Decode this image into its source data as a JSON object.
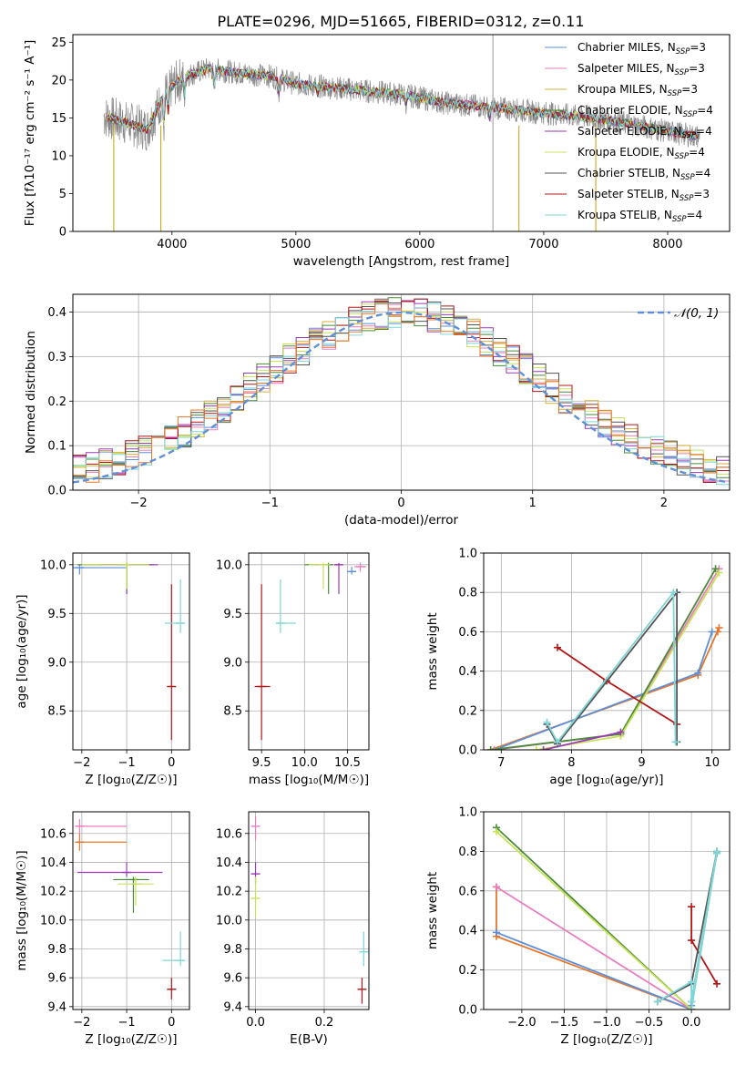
{
  "figure": {
    "title": "PLATE=0296, MJD=51665, FIBERID=0312, z=0.11"
  },
  "colors": {
    "chabrier_miles": "#5b8fd9",
    "salpeter_miles": "#e87ec0",
    "kroupa_miles": "#d2b03a",
    "chabrier_elodie": "#4a8a3a",
    "salpeter_elodie": "#9a3ab5",
    "kroupa_elodie": "#c8e25a",
    "chabrier_stelib": "#555555",
    "salpeter_stelib": "#b01818",
    "kroupa_stelib": "#7fd6d6",
    "orange": "#e8762b",
    "gaussian": "#6090d8",
    "grid": "#b0b0b0",
    "data": "#888888"
  },
  "chart_data": [
    {
      "id": "spectrum",
      "type": "line",
      "xlabel": "wavelength [Angstrom, rest frame]",
      "ylabel": "Flux [fλ10⁻¹⁷ erg cm⁻² s⁻¹ A⁻¹]",
      "xlim": [
        3200,
        8500
      ],
      "ylim": [
        0,
        26
      ],
      "xticks": [
        4000,
        5000,
        6000,
        7000,
        8000
      ],
      "yticks": [
        0,
        5,
        10,
        15,
        20,
        25
      ],
      "grid": false,
      "legend_position": "top-right",
      "continuum": {
        "x": [
          3450,
          3600,
          3800,
          3950,
          4100,
          4300,
          4500,
          4800,
          5000,
          5300,
          5600,
          5900,
          6200,
          6500,
          6800,
          7100,
          7400,
          7700,
          8000,
          8250
        ],
        "y": [
          15.2,
          14.5,
          13.5,
          18.5,
          20.5,
          21.5,
          21.0,
          20.5,
          19.5,
          19.0,
          18.5,
          18.0,
          17.0,
          16.5,
          16.0,
          15.5,
          15.0,
          14.2,
          13.2,
          12.5
        ]
      },
      "series": [
        {
          "name": "Chabrier MILES, N_SSP=3",
          "color_key": "chabrier_miles"
        },
        {
          "name": "Salpeter MILES, N_SSP=3",
          "color_key": "salpeter_miles"
        },
        {
          "name": "Kroupa MILES, N_SSP=3",
          "color_key": "kroupa_miles"
        },
        {
          "name": "Chabrier ELODIE, N_SSP=4",
          "color_key": "chabrier_elodie"
        },
        {
          "name": "Salpeter ELODIE, N_SSP=4",
          "color_key": "salpeter_elodie"
        },
        {
          "name": "Kroupa ELODIE, N_SSP=4",
          "color_key": "kroupa_elodie"
        },
        {
          "name": "Chabrier STELIB, N_SSP=4",
          "color_key": "chabrier_stelib"
        },
        {
          "name": "Salpeter STELIB, N_SSP=3",
          "color_key": "salpeter_stelib"
        },
        {
          "name": "Kroupa STELIB, N_SSP=4",
          "color_key": "kroupa_stelib"
        }
      ]
    },
    {
      "id": "residuals",
      "type": "line",
      "xlabel": "(data-model)/error",
      "ylabel": "Normed distribution",
      "xlim": [
        -2.5,
        2.5
      ],
      "ylim": [
        0,
        0.44
      ],
      "xticks": [
        -2,
        -1,
        0,
        1,
        2
      ],
      "yticks": [
        0.0,
        0.1,
        0.2,
        0.3,
        0.4
      ],
      "grid": true,
      "legend_position": "top-right",
      "legend": "𝒩(0, 1)",
      "histogram_bins": {
        "start": -2.5,
        "width": 0.1,
        "count": 50
      },
      "gaussian": {
        "mean": 0,
        "sigma": 1
      }
    },
    {
      "id": "age_vs_Z",
      "type": "scatter",
      "xlabel": "Z [log₁₀(Z/Z☉)]",
      "ylabel": "age  [log₁₀(age/yr)]",
      "xlim": [
        -2.2,
        0.4
      ],
      "ylim": [
        8.1,
        10.12
      ],
      "xticks": [
        -2,
        -1,
        0
      ],
      "yticks": [
        8.5,
        9.0,
        9.5,
        10.0
      ],
      "grid": true,
      "points": [
        {
          "x": -2.05,
          "xlo": -2.2,
          "xhi": -1.0,
          "y": 9.97,
          "ylo": 9.9,
          "yhi": 10.0,
          "color_key": "chabrier_miles"
        },
        {
          "x": -1.0,
          "xlo": -2.1,
          "xhi": -0.4,
          "y": 10.0,
          "ylo": 9.7,
          "yhi": 10.02,
          "color_key": "chabrier_elodie"
        },
        {
          "x": -1.0,
          "xlo": -1.6,
          "xhi": -0.3,
          "y": 10.0,
          "ylo": 9.7,
          "yhi": 10.02,
          "color_key": "salpeter_elodie"
        },
        {
          "x": -1.0,
          "xlo": -2.0,
          "xhi": -0.5,
          "y": 10.0,
          "ylo": 9.75,
          "yhi": 10.02,
          "color_key": "kroupa_elodie"
        },
        {
          "x": 0.0,
          "xlo": -0.05,
          "xhi": 0.05,
          "y": 8.75,
          "ylo": 8.2,
          "yhi": 9.8,
          "color_key": "salpeter_stelib"
        },
        {
          "x": 0.2,
          "xlo": -0.15,
          "xhi": 0.3,
          "y": 9.4,
          "ylo": 9.3,
          "yhi": 9.85,
          "color_key": "kroupa_stelib"
        }
      ]
    },
    {
      "id": "age_vs_mass",
      "type": "scatter",
      "xlabel": "mass [log₁₀(M/M☉)]",
      "ylabel": "",
      "xlim": [
        9.35,
        10.75
      ],
      "ylim": [
        8.1,
        10.12
      ],
      "xticks": [
        9.5,
        10.0,
        10.5
      ],
      "yticks": [
        8.5,
        9.0,
        9.5,
        10.0
      ],
      "grid": true,
      "points": [
        {
          "x": 10.55,
          "xlo": 10.5,
          "xhi": 10.6,
          "y": 9.93,
          "ylo": 9.9,
          "yhi": 9.98,
          "color_key": "chabrier_miles"
        },
        {
          "x": 10.65,
          "xlo": 10.58,
          "xhi": 10.72,
          "y": 9.98,
          "ylo": 9.93,
          "yhi": 10.02,
          "color_key": "salpeter_miles"
        },
        {
          "x": 10.28,
          "xlo": 10.0,
          "xhi": 10.3,
          "y": 10.0,
          "ylo": 9.7,
          "yhi": 10.02,
          "color_key": "chabrier_elodie"
        },
        {
          "x": 10.4,
          "xlo": 10.35,
          "xhi": 10.42,
          "y": 10.0,
          "ylo": 9.7,
          "yhi": 10.02,
          "color_key": "salpeter_elodie"
        },
        {
          "x": 10.22,
          "xlo": 10.05,
          "xhi": 10.3,
          "y": 10.0,
          "ylo": 9.75,
          "yhi": 10.02,
          "color_key": "kroupa_elodie"
        },
        {
          "x": 9.5,
          "xlo": 9.42,
          "xhi": 9.6,
          "y": 8.75,
          "ylo": 8.2,
          "yhi": 9.8,
          "color_key": "salpeter_stelib"
        },
        {
          "x": 9.72,
          "xlo": 9.68,
          "xhi": 9.9,
          "y": 9.4,
          "ylo": 9.3,
          "yhi": 9.85,
          "color_key": "kroupa_stelib"
        }
      ]
    },
    {
      "id": "weight_vs_age",
      "type": "line",
      "xlabel": "age  [log₁₀(age/yr)]",
      "ylabel": "mass weight",
      "xlim": [
        6.75,
        10.25
      ],
      "ylim": [
        0,
        1
      ],
      "xticks": [
        7,
        8,
        9,
        10
      ],
      "yticks": [
        0.0,
        0.2,
        0.4,
        0.6,
        0.8,
        1.0
      ],
      "grid": true,
      "lines": [
        {
          "color_key": "orange",
          "x": [
            6.85,
            9.8,
            10.1,
            10.08
          ],
          "y": [
            0.0,
            0.38,
            0.62,
            0.6
          ]
        },
        {
          "color_key": "chabrier_miles",
          "x": [
            6.9,
            9.8,
            10.0
          ],
          "y": [
            0.0,
            0.39,
            0.6
          ]
        },
        {
          "color_key": "salpeter_miles",
          "x": [
            6.9,
            8.7,
            10.1
          ],
          "y": [
            0.0,
            0.08,
            0.92
          ]
        },
        {
          "color_key": "chabrier_elodie",
          "x": [
            6.85,
            8.7,
            10.05
          ],
          "y": [
            0.0,
            0.08,
            0.92
          ]
        },
        {
          "color_key": "kroupa_elodie",
          "x": [
            7.5,
            8.7,
            10.1
          ],
          "y": [
            0.0,
            0.07,
            0.9
          ]
        },
        {
          "color_key": "salpeter_elodie",
          "x": [
            7.6,
            8.7
          ],
          "y": [
            0.0,
            0.09
          ]
        },
        {
          "color_key": "salpeter_stelib",
          "x": [
            7.8,
            8.5,
            9.5
          ],
          "y": [
            0.52,
            0.35,
            0.13
          ]
        },
        {
          "color_key": "chabrier_stelib",
          "x": [
            7.65,
            7.8,
            9.5,
            9.5
          ],
          "y": [
            0.13,
            0.03,
            0.8,
            0.04
          ]
        },
        {
          "color_key": "kroupa_stelib",
          "x": [
            7.65,
            7.8,
            9.45,
            9.48
          ],
          "y": [
            0.14,
            0.04,
            0.8,
            0.04
          ]
        }
      ]
    },
    {
      "id": "mass_vs_Z",
      "type": "scatter",
      "xlabel": "Z [log₁₀(Z/Z☉)]",
      "ylabel": "mass [log₁₀(M/M☉)]",
      "xlim": [
        -2.2,
        0.4
      ],
      "ylim": [
        9.38,
        10.75
      ],
      "xticks": [
        -2,
        -1,
        0
      ],
      "yticks": [
        9.4,
        9.6,
        9.8,
        10.0,
        10.2,
        10.4,
        10.6
      ],
      "grid": true,
      "points": [
        {
          "x": -2.05,
          "xlo": -2.1,
          "xhi": -1.0,
          "y": 10.65,
          "ylo": 10.6,
          "yhi": 10.7,
          "color_key": "salpeter_miles"
        },
        {
          "x": -2.05,
          "xlo": -2.1,
          "xhi": -1.0,
          "y": 10.54,
          "ylo": 10.48,
          "yhi": 10.6,
          "color_key": "orange"
        },
        {
          "x": -1.0,
          "xlo": -2.1,
          "xhi": -0.2,
          "y": 10.33,
          "ylo": 10.3,
          "yhi": 10.4,
          "color_key": "salpeter_elodie"
        },
        {
          "x": -0.85,
          "xlo": -1.3,
          "xhi": -0.5,
          "y": 10.28,
          "ylo": 10.05,
          "yhi": 10.3,
          "color_key": "chabrier_elodie"
        },
        {
          "x": -0.8,
          "xlo": -1.2,
          "xhi": -0.4,
          "y": 10.25,
          "ylo": 10.1,
          "yhi": 10.3,
          "color_key": "kroupa_elodie"
        },
        {
          "x": 0.0,
          "xlo": -0.1,
          "xhi": 0.1,
          "y": 9.52,
          "ylo": 9.45,
          "yhi": 9.6,
          "color_key": "salpeter_stelib"
        },
        {
          "x": 0.2,
          "xlo": -0.2,
          "xhi": 0.3,
          "y": 9.72,
          "ylo": 9.68,
          "yhi": 9.92,
          "color_key": "kroupa_stelib"
        }
      ]
    },
    {
      "id": "mass_vs_ebv",
      "type": "scatter",
      "xlabel": "E(B-V)",
      "ylabel": "",
      "xlim": [
        -0.02,
        0.33
      ],
      "ylim": [
        9.38,
        10.75
      ],
      "xticks": [
        0.0,
        0.2
      ],
      "yticks": [
        9.4,
        9.6,
        9.8,
        10.0,
        10.2,
        10.4,
        10.6
      ],
      "grid": true,
      "points": [
        {
          "x": 0.0,
          "y": 10.65,
          "ylo": 10.55,
          "yhi": 10.72,
          "color_key": "salpeter_miles"
        },
        {
          "x": 0.0,
          "y": 10.32,
          "ylo": 10.25,
          "yhi": 10.4,
          "color_key": "salpeter_elodie"
        },
        {
          "x": 0.0,
          "y": 10.15,
          "ylo": 10.02,
          "yhi": 10.3,
          "color_key": "kroupa_elodie"
        },
        {
          "x": 0.31,
          "y": 9.52,
          "ylo": 9.42,
          "yhi": 9.6,
          "color_key": "salpeter_stelib"
        },
        {
          "x": 0.315,
          "y": 9.78,
          "ylo": 9.68,
          "yhi": 9.92,
          "color_key": "kroupa_stelib"
        }
      ]
    },
    {
      "id": "weight_vs_Z",
      "type": "line",
      "xlabel": "Z [log₁₀(Z/Z☉)]",
      "ylabel": "mass weight",
      "xlim": [
        -2.45,
        0.45
      ],
      "ylim": [
        0,
        1
      ],
      "xticks": [
        -2.0,
        -1.5,
        -1.0,
        -0.5,
        0.0
      ],
      "xtick_labels": [
        "−2.0",
        "−1.5",
        "−1.0",
        "−0.5",
        "0.0"
      ],
      "yticks": [
        0.0,
        0.2,
        0.4,
        0.6,
        0.8,
        1.0
      ],
      "grid": true,
      "lines": [
        {
          "color_key": "orange",
          "x": [
            -2.3,
            -2.3,
            0.0
          ],
          "y": [
            0.62,
            0.37,
            0.0
          ]
        },
        {
          "color_key": "chabrier_miles",
          "x": [
            -2.3,
            0.0,
            0.0
          ],
          "y": [
            0.39,
            0.0,
            0.02
          ]
        },
        {
          "color_key": "salpeter_miles",
          "x": [
            -2.3,
            0.0
          ],
          "y": [
            0.62,
            0.0
          ]
        },
        {
          "color_key": "chabrier_elodie",
          "x": [
            -2.3,
            0.0
          ],
          "y": [
            0.92,
            0.0
          ]
        },
        {
          "color_key": "kroupa_elodie",
          "x": [
            -2.3,
            0.0
          ],
          "y": [
            0.9,
            0.0
          ]
        },
        {
          "color_key": "salpeter_stelib",
          "x": [
            0.0,
            0.0,
            0.3
          ],
          "y": [
            0.52,
            0.35,
            0.13
          ]
        },
        {
          "color_key": "chabrier_stelib",
          "x": [
            -0.4,
            0.0,
            0.3,
            0.3,
            0.0,
            0.0
          ],
          "y": [
            0.04,
            0.13,
            0.8,
            0.79,
            0.04,
            0.0
          ]
        },
        {
          "color_key": "kroupa_stelib",
          "x": [
            -0.4,
            0.0,
            0.0,
            0.3,
            0.3,
            0.0
          ],
          "y": [
            0.04,
            0.14,
            0.04,
            0.8,
            0.79,
            0.0
          ]
        }
      ]
    }
  ]
}
